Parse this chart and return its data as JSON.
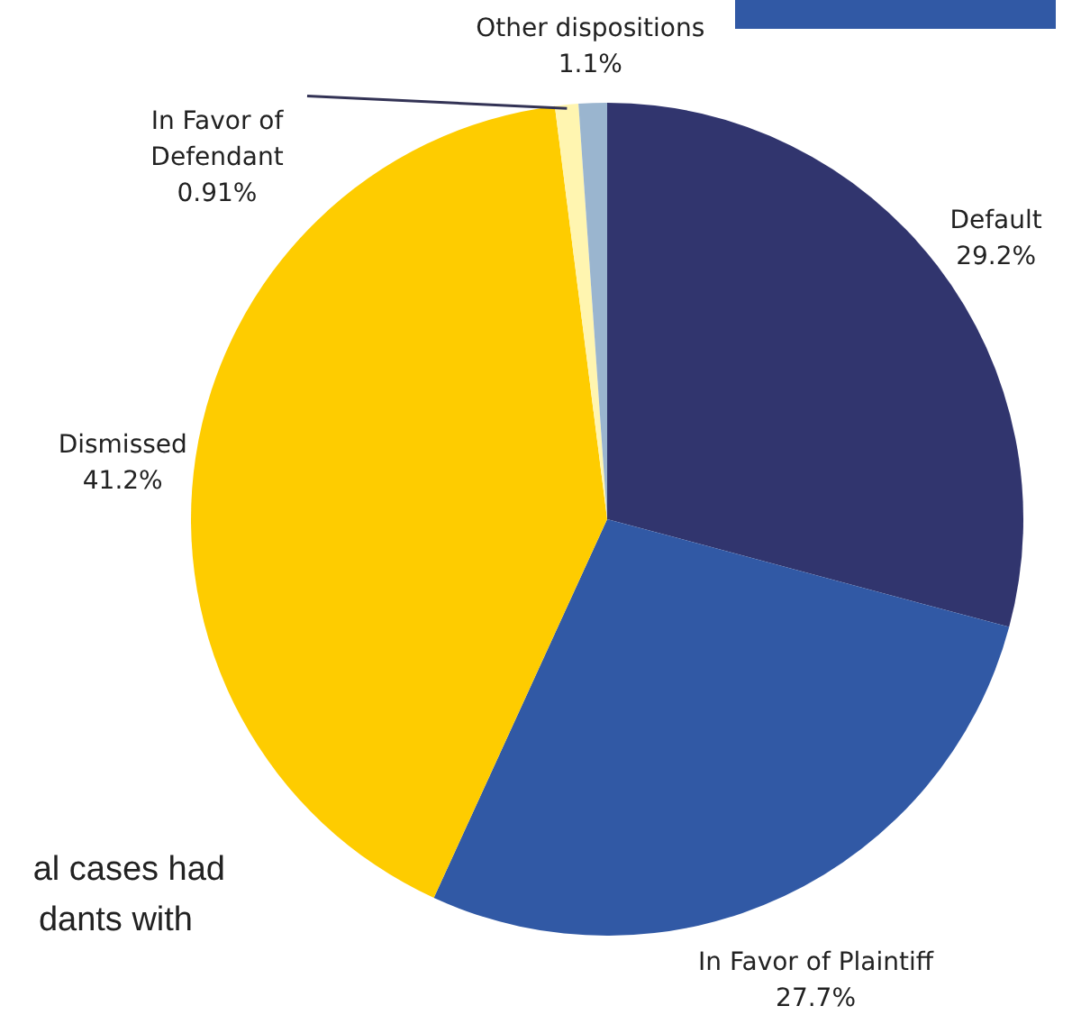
{
  "chart_data": {
    "type": "pie",
    "categories": [
      "Default",
      "In Favor of Plaintiff",
      "Dismissed",
      "In Favor of\nDefendant",
      "Other dispositions"
    ],
    "values": [
      29.2,
      27.7,
      41.2,
      0.91,
      1.1
    ],
    "value_labels": [
      "29.2%",
      "27.7%",
      "41.2%",
      "0.91%",
      "1.1%"
    ],
    "colors": [
      "#31356e",
      "#3159a5",
      "#fecc00",
      "#fff5b0",
      "#9ab5cf"
    ],
    "annotations": [
      "al cases had",
      "dants with"
    ]
  }
}
